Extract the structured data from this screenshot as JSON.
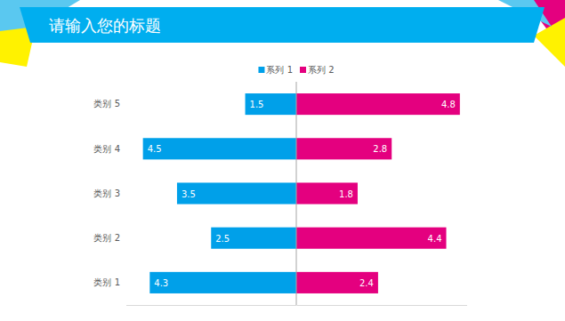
{
  "chart_data": {
    "type": "bar",
    "title": "请输入您的标题",
    "orientation": "horizontal",
    "categories": [
      "类别 1",
      "类别 2",
      "类别 3",
      "类别 4",
      "类别 5"
    ],
    "series": [
      {
        "name": "系列 1",
        "color": "#00a0e9",
        "values": [
          4.3,
          2.5,
          3.5,
          4.5,
          1.5
        ]
      },
      {
        "name": "系列 2",
        "color": "#e4007f",
        "values": [
          2.4,
          4.4,
          1.8,
          2.8,
          4.8
        ]
      }
    ],
    "xlim": [
      0,
      5
    ],
    "xticks": [
      0
    ],
    "data_labels": true,
    "tick_labels": "y",
    "legend": "top"
  }
}
